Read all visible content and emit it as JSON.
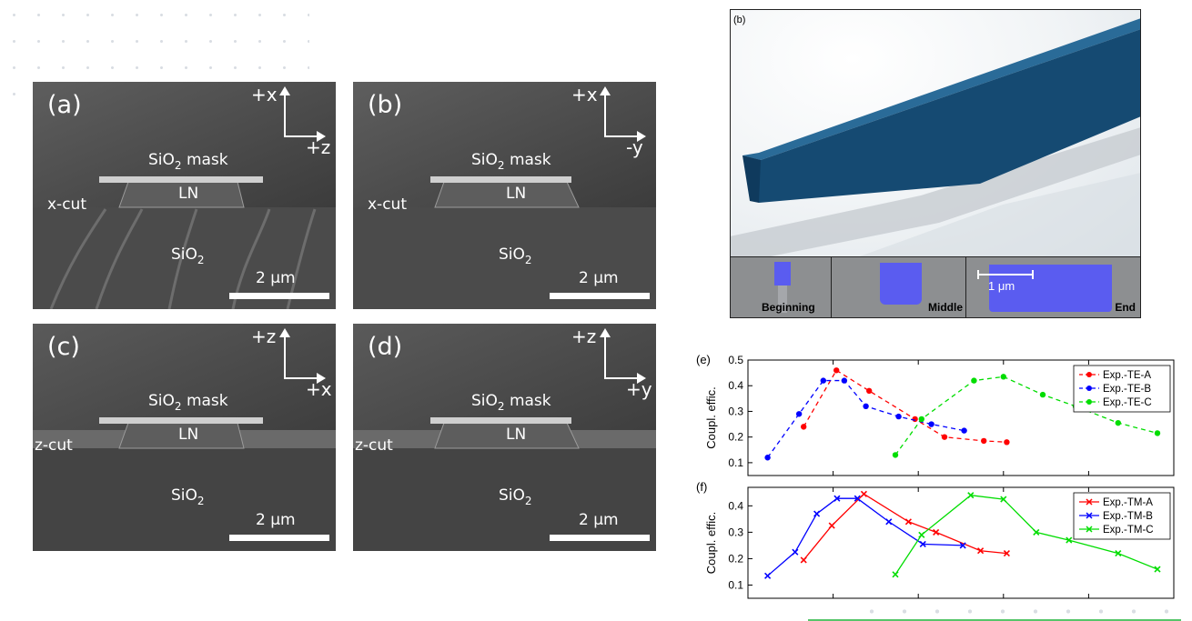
{
  "sem_panels": [
    {
      "letter": "(a)",
      "axis_up": "+x",
      "axis_right": "+z",
      "mask_main": "SiO",
      "mask_sub": "2",
      "mask_rest": " mask",
      "ln": "LN",
      "cut": "x-cut",
      "sub_main": "SiO",
      "sub_sub": "2",
      "scale": "2 μm"
    },
    {
      "letter": "(b)",
      "axis_up": "+x",
      "axis_right": "-y",
      "mask_main": "SiO",
      "mask_sub": "2",
      "mask_rest": " mask",
      "ln": "LN",
      "cut": "x-cut",
      "sub_main": "SiO",
      "sub_sub": "2",
      "scale": "2 μm"
    },
    {
      "letter": "(c)",
      "axis_up": "+z",
      "axis_right": "+x",
      "mask_main": "SiO",
      "mask_sub": "2",
      "mask_rest": " mask",
      "ln": "LN",
      "cut": "z-cut",
      "sub_main": "SiO",
      "sub_sub": "2",
      "scale": "2 μm"
    },
    {
      "letter": "(d)",
      "axis_up": "+z",
      "axis_right": "+y",
      "mask_main": "SiO",
      "mask_sub": "2",
      "mask_rest": " mask",
      "ln": "LN",
      "cut": "z-cut",
      "sub_main": "SiO",
      "sub_sub": "2",
      "scale": "2 μm"
    }
  ],
  "panel_b3d": {
    "letter": "(b)",
    "strips": [
      "Beginning",
      "Middle",
      "End"
    ],
    "scale": "1 μm",
    "waveguide_color": "#154a72",
    "crosssection_color": "#5a5cf0"
  },
  "chart_data": [
    {
      "type": "line",
      "panel": "(e)",
      "ylabel": "Coupl. effic.",
      "ylim": [
        0.05,
        0.5
      ],
      "yticks": [
        "0.1",
        "0.2",
        "0.3",
        "0.4",
        "0.5"
      ],
      "line_style": "dashed",
      "marker": "circle",
      "series": [
        {
          "name": "Exp.-TE-A",
          "color": "#ff0000",
          "points": [
            [
              0.235,
              0.24
            ],
            [
              0.285,
              0.46
            ],
            [
              0.335,
              0.38
            ],
            [
              0.405,
              0.27
            ],
            [
              0.45,
              0.2
            ],
            [
              0.51,
              0.185
            ],
            [
              0.545,
              0.18
            ]
          ]
        },
        {
          "name": "Exp.-TE-B",
          "color": "#0000ff",
          "points": [
            [
              0.18,
              0.12
            ],
            [
              0.228,
              0.29
            ],
            [
              0.265,
              0.42
            ],
            [
              0.297,
              0.42
            ],
            [
              0.33,
              0.32
            ],
            [
              0.38,
              0.28
            ],
            [
              0.43,
              0.25
            ],
            [
              0.48,
              0.225
            ]
          ]
        },
        {
          "name": "Exp.-TE-C",
          "color": "#00dd00",
          "points": [
            [
              0.375,
              0.13
            ],
            [
              0.415,
              0.27
            ],
            [
              0.495,
              0.42
            ],
            [
              0.54,
              0.435
            ],
            [
              0.6,
              0.365
            ],
            [
              0.65,
              0.32
            ],
            [
              0.715,
              0.255
            ],
            [
              0.775,
              0.215
            ]
          ]
        }
      ]
    },
    {
      "type": "line",
      "panel": "(f)",
      "ylabel": "Coupl. effic.",
      "ylim": [
        0.05,
        0.47
      ],
      "yticks": [
        "0.1",
        "0.2",
        "0.3",
        "0.4"
      ],
      "line_style": "solid",
      "marker": "x",
      "series": [
        {
          "name": "Exp.-TM-A",
          "color": "#ff0000",
          "points": [
            [
              0.235,
              0.195
            ],
            [
              0.278,
              0.325
            ],
            [
              0.327,
              0.445
            ],
            [
              0.395,
              0.34
            ],
            [
              0.437,
              0.3
            ],
            [
              0.505,
              0.23
            ],
            [
              0.545,
              0.22
            ]
          ]
        },
        {
          "name": "Exp.-TM-B",
          "color": "#0000ff",
          "points": [
            [
              0.18,
              0.135
            ],
            [
              0.222,
              0.225
            ],
            [
              0.255,
              0.37
            ],
            [
              0.286,
              0.428
            ],
            [
              0.317,
              0.428
            ],
            [
              0.365,
              0.34
            ],
            [
              0.417,
              0.255
            ],
            [
              0.478,
              0.25
            ]
          ]
        },
        {
          "name": "Exp.-TM-C",
          "color": "#00dd00",
          "points": [
            [
              0.375,
              0.14
            ],
            [
              0.415,
              0.29
            ],
            [
              0.49,
              0.44
            ],
            [
              0.54,
              0.425
            ],
            [
              0.59,
              0.3
            ],
            [
              0.64,
              0.27
            ],
            [
              0.715,
              0.22
            ],
            [
              0.775,
              0.16
            ]
          ]
        }
      ]
    }
  ]
}
